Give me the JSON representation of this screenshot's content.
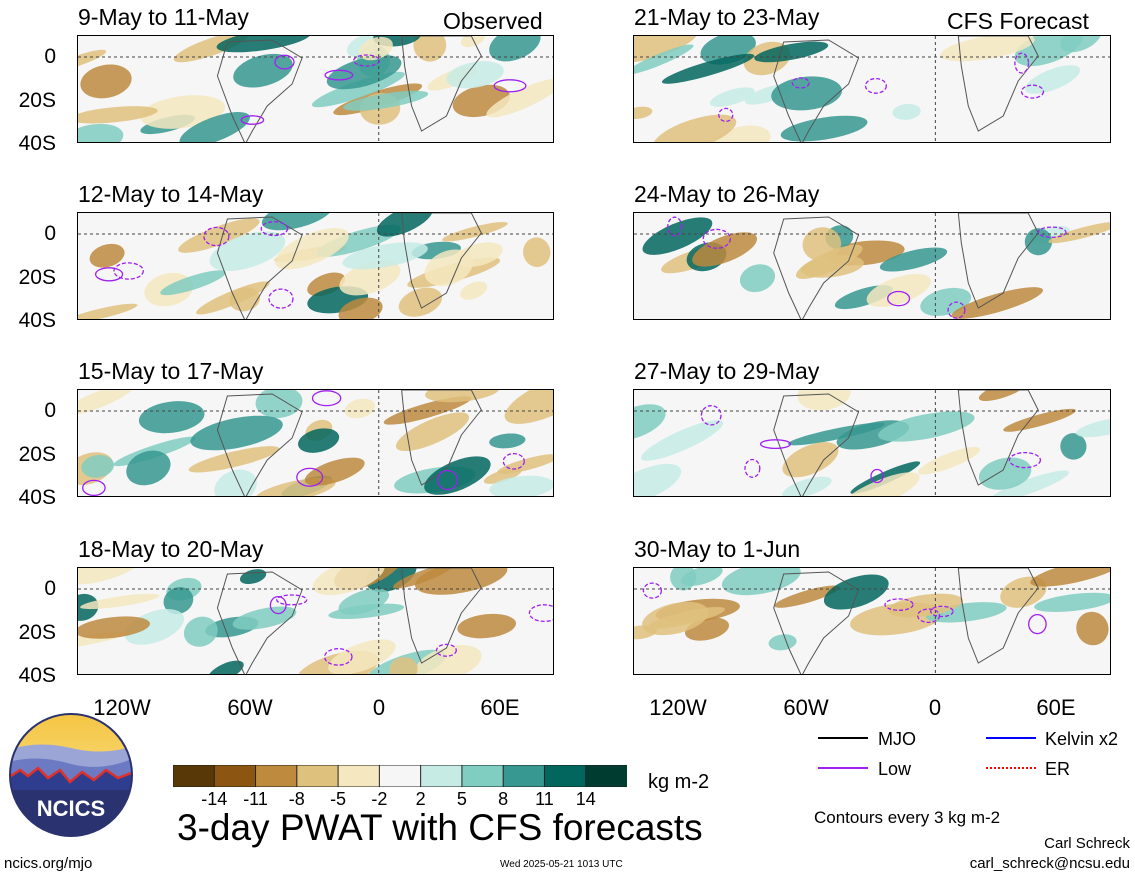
{
  "header": {
    "observed_label": "Observed",
    "forecast_label": "CFS Forecast"
  },
  "panels": [
    {
      "title": "9-May to 11-May",
      "column": "observed"
    },
    {
      "title": "12-May to 14-May",
      "column": "observed"
    },
    {
      "title": "15-May to 17-May",
      "column": "observed"
    },
    {
      "title": "18-May to 20-May",
      "column": "observed"
    },
    {
      "title": "21-May to 23-May",
      "column": "forecast"
    },
    {
      "title": "24-May to 26-May",
      "column": "forecast"
    },
    {
      "title": "27-May to 29-May",
      "column": "forecast"
    },
    {
      "title": "30-May to 1-Jun",
      "column": "forecast"
    }
  ],
  "axes": {
    "lat_ticks": [
      "0",
      "20S",
      "40S"
    ],
    "lon_ticks": [
      "120W",
      "60W",
      "0",
      "60E"
    ]
  },
  "colorbar": {
    "labels": [
      "-14",
      "-11",
      "-8",
      "-5",
      "-2",
      "2",
      "5",
      "8",
      "11",
      "14"
    ],
    "colors": [
      "#573806",
      "#8c5512",
      "#bd8a3e",
      "#dfc17e",
      "#f5e7c0",
      "#f6f6f6",
      "#c6ebe5",
      "#80cdc1",
      "#369890",
      "#02665e",
      "#003c30"
    ],
    "units": "kg m-2"
  },
  "legend": {
    "items": [
      {
        "label": "MJO",
        "color": "#000000",
        "style": "solid"
      },
      {
        "label": "Kelvin x2",
        "color": "#0000ff",
        "style": "solid"
      },
      {
        "label": "Low",
        "color": "#a020f0",
        "style": "solid"
      },
      {
        "label": "ER",
        "color": "#ff0000",
        "style": "dotted"
      }
    ],
    "contour_note": "Contours every 3 kg m-2"
  },
  "footer": {
    "title": "3-day PWAT with CFS forecasts",
    "logo_text": "NCICS",
    "website": "ncics.org/mjo",
    "timestamp": "Wed 2025-05-21 1013 UTC",
    "author": "Carl Schreck",
    "email": "carl_schreck@ncsu.edu"
  }
}
